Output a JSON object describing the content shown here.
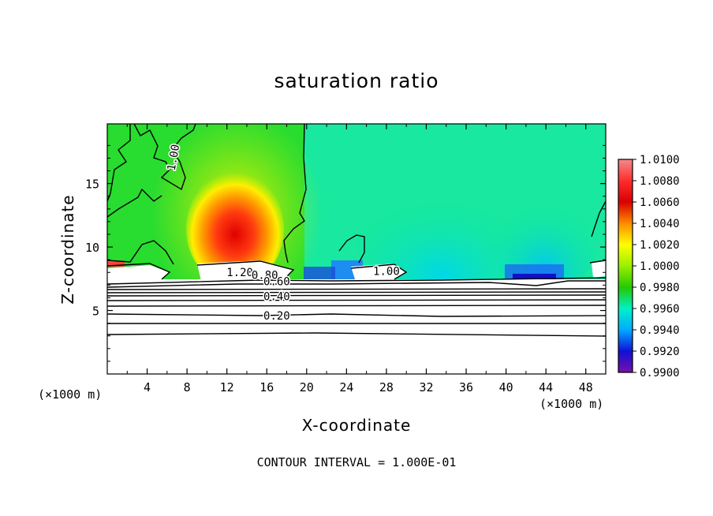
{
  "chart_data": {
    "type": "heatmap",
    "title": "saturation ratio",
    "xlabel": "X-coordinate",
    "ylabel": "Z-coordinate",
    "x_unit": "(×1000 m)",
    "xlim": [
      0,
      50
    ],
    "ylim": [
      0,
      19.7
    ],
    "x_ticks": [
      4,
      8,
      12,
      16,
      20,
      24,
      28,
      32,
      36,
      40,
      44,
      48
    ],
    "y_ticks": [
      5,
      10,
      15
    ],
    "colorbar": {
      "levels": [
        "1.0100",
        "1.0080",
        "1.0060",
        "1.0040",
        "1.0020",
        "1.0000",
        "0.9980",
        "0.9960",
        "0.9940",
        "0.9920",
        "0.9900"
      ],
      "colors": [
        "#f08a8a",
        "#ff2c2c",
        "#d80000",
        "#ff8c00",
        "#ffff00",
        "#9aef00",
        "#23c800",
        "#00f2c8",
        "#00aaff",
        "#1010d8",
        "#7a10a8"
      ]
    },
    "contour_labels": [
      {
        "x": 7,
        "z": 17.0,
        "text": "1.00",
        "rotate": -80
      },
      {
        "x": 13.3,
        "z": 7.7,
        "text": "1.20"
      },
      {
        "x": 15.8,
        "z": 7.5,
        "text": "0.80"
      },
      {
        "x": 17.0,
        "z": 7.0,
        "text": "0.60"
      },
      {
        "x": 17.0,
        "z": 5.8,
        "text": "0.40"
      },
      {
        "x": 17.0,
        "z": 4.3,
        "text": "0.20"
      },
      {
        "x": 28.0,
        "z": 7.8,
        "text": "1.00"
      }
    ],
    "footnote": "CONTOUR INTERVAL = 1.000E-01"
  }
}
